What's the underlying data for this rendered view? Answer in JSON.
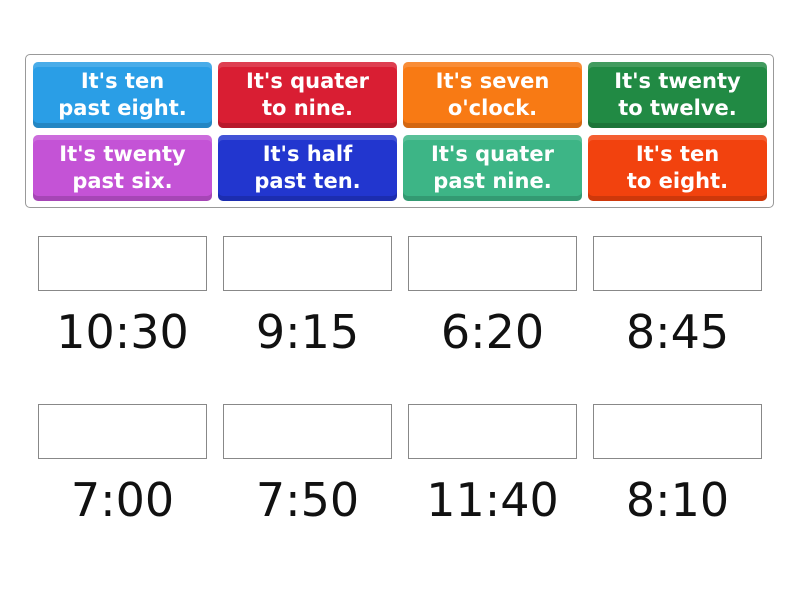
{
  "tiles": [
    {
      "text": "It's ten\npast eight.",
      "color": "#2a9ee6"
    },
    {
      "text": "It's quater\nto nine.",
      "color": "#d91e33"
    },
    {
      "text": "It's seven\no'clock.",
      "color": "#f87a14"
    },
    {
      "text": "It's twenty\nto twelve.",
      "color": "#218a44"
    },
    {
      "text": "It's twenty\npast six.",
      "color": "#c453d6"
    },
    {
      "text": "It's half\npast ten.",
      "color": "#2236cf"
    },
    {
      "text": "It's quater\npast nine.",
      "color": "#3db586"
    },
    {
      "text": "It's ten\nto eight.",
      "color": "#f2420e"
    }
  ],
  "targets": [
    {
      "time": "10:30"
    },
    {
      "time": "9:15"
    },
    {
      "time": "6:20"
    },
    {
      "time": "8:45"
    },
    {
      "time": "7:00"
    },
    {
      "time": "7:50"
    },
    {
      "time": "11:40"
    },
    {
      "time": "8:10"
    }
  ]
}
